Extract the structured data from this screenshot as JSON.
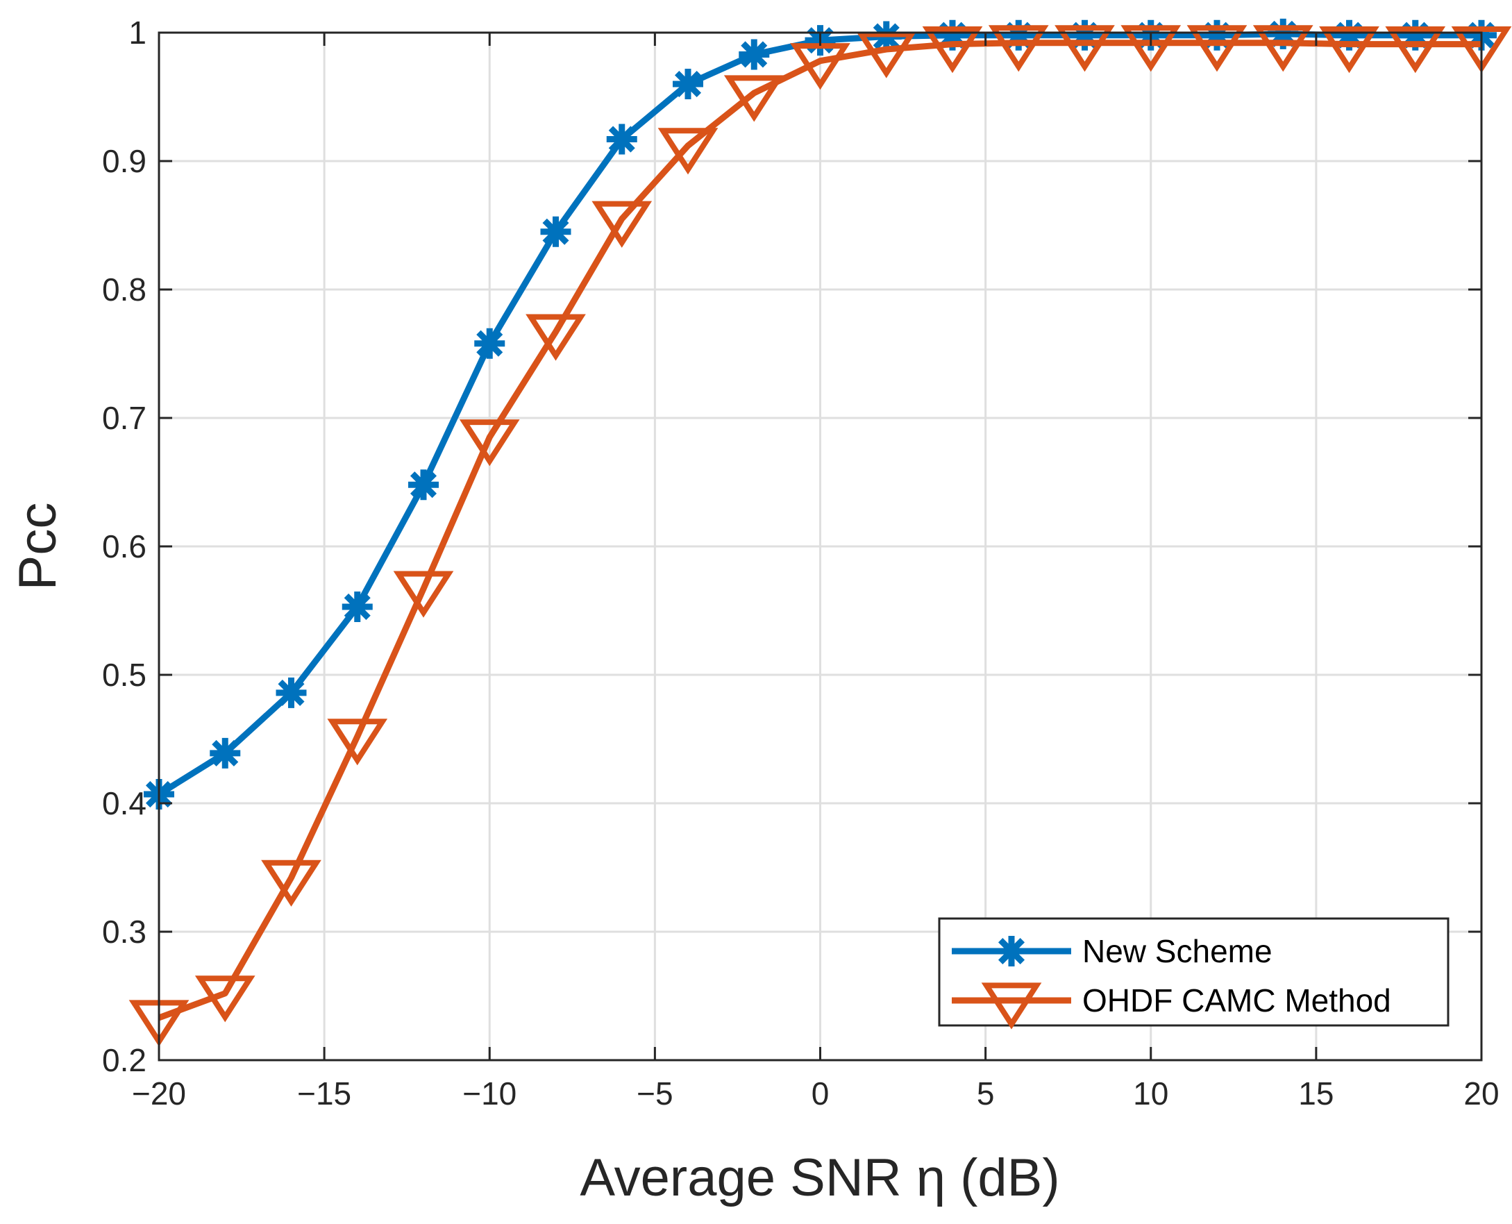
{
  "chart_data": {
    "type": "line",
    "xlabel": "Average SNR η (dB)",
    "ylabel": "Pcc",
    "xlim": [
      -20,
      20
    ],
    "ylim": [
      0.2,
      1
    ],
    "grid": true,
    "x_ticks": [
      -20,
      -15,
      -10,
      -5,
      0,
      5,
      10,
      15,
      20
    ],
    "x_tick_labels": [
      "−20",
      "−15",
      "−10",
      "−5",
      "0",
      "5",
      "10",
      "15",
      "20"
    ],
    "y_ticks": [
      0.2,
      0.3,
      0.4,
      0.5,
      0.6,
      0.7,
      0.8,
      0.9,
      1
    ],
    "y_tick_labels": [
      "0.2",
      "0.3",
      "0.4",
      "0.5",
      "0.6",
      "0.7",
      "0.8",
      "0.9",
      "1"
    ],
    "x": [
      -20,
      -18,
      -16,
      -14,
      -12,
      -10,
      -8,
      -6,
      -4,
      -2,
      0,
      2,
      4,
      6,
      8,
      10,
      12,
      14,
      16,
      18,
      20
    ],
    "legend_position": "bottom-right",
    "series": [
      {
        "name": "New Scheme",
        "color": "#0072BD",
        "marker": "asterisk",
        "values": [
          0.407,
          0.439,
          0.486,
          0.553,
          0.648,
          0.758,
          0.845,
          0.917,
          0.96,
          0.983,
          0.994,
          0.997,
          0.998,
          0.998,
          0.998,
          0.998,
          0.998,
          0.999,
          0.998,
          0.998,
          0.998
        ]
      },
      {
        "name": "OHDF CAMC Method",
        "color": "#D95319",
        "marker": "triangle-down",
        "values": [
          0.233,
          0.252,
          0.342,
          0.452,
          0.567,
          0.685,
          0.767,
          0.855,
          0.912,
          0.953,
          0.978,
          0.987,
          0.991,
          0.992,
          0.992,
          0.992,
          0.992,
          0.992,
          0.991,
          0.991,
          0.991
        ]
      }
    ]
  }
}
